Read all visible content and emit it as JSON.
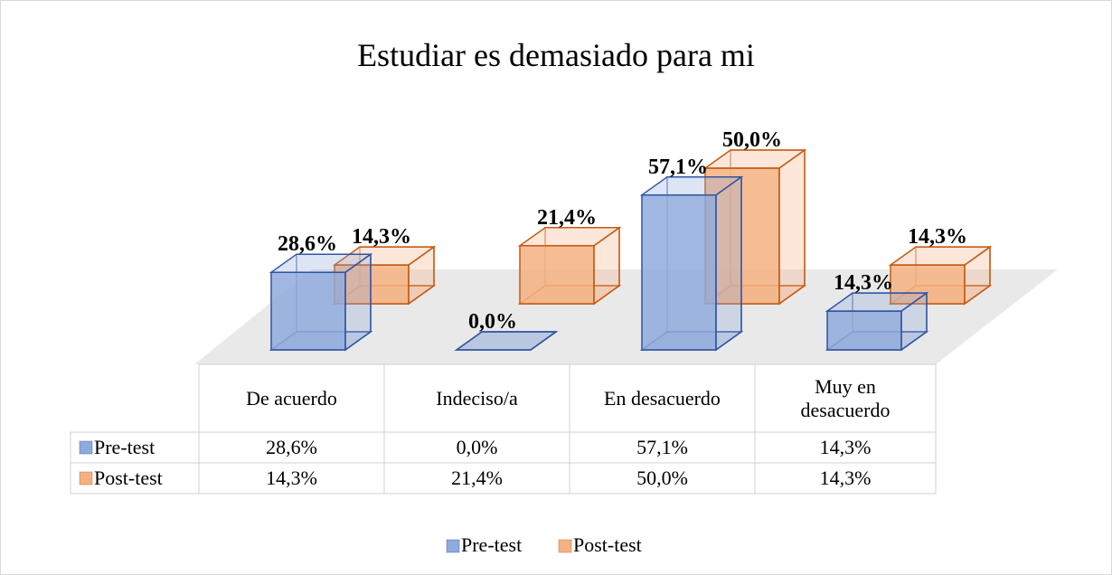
{
  "chart_data": {
    "type": "bar3d",
    "title": "Estudiar es demasiado para mi",
    "categories": [
      "De acuerdo",
      "Indeciso/a",
      "En desacuerdo",
      "Muy en desacuerdo"
    ],
    "series": [
      {
        "name": "Pre-test",
        "color": "#8faadc",
        "stroke": "#2f55a4",
        "values": [
          28.6,
          0,
          57.1,
          14.3
        ],
        "value_labels": [
          "28,6%",
          "0,0%",
          "57,1%",
          "14,3%"
        ]
      },
      {
        "name": "Post-test",
        "color": "#f4b183",
        "stroke": "#c55a11",
        "values": [
          14.3,
          21.4,
          50,
          14.3
        ],
        "value_labels": [
          "14,3%",
          "21,4%",
          "50,0%",
          "14,3%"
        ]
      }
    ],
    "legend": "bottom",
    "data_table": true
  }
}
